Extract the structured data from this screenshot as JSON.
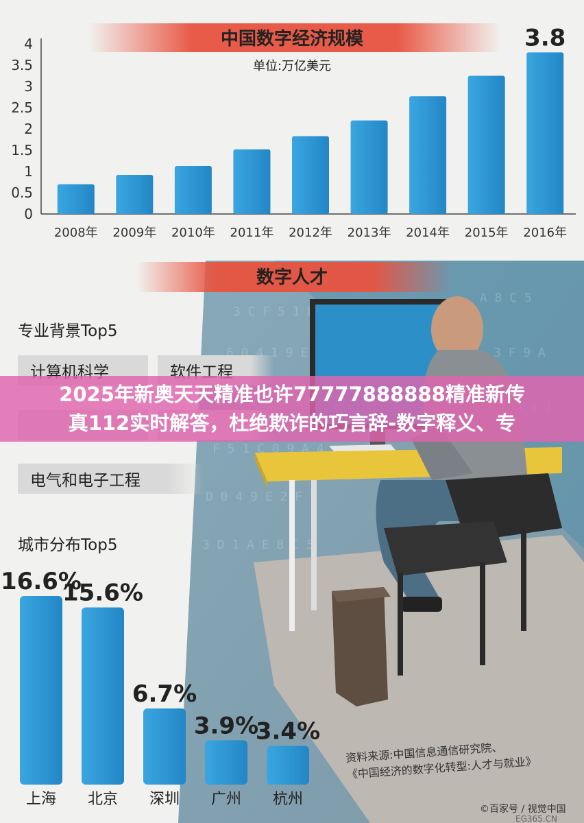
{
  "colors": {
    "bar": "#2f9bd8",
    "bar_dark": "#1e7fbe",
    "title_bg": "#e8533f",
    "pill_bg": "#dcdcdc",
    "banner": "#e064af"
  },
  "top_chart_title": "中国数字经济规模",
  "top_chart_unit": "单位:万亿美元",
  "section_title": "数字人才",
  "major_heading": "专业背景Top5",
  "majors": [
    "计算机科学",
    "软件工程",
    "",
    "",
    "电气和电子工程"
  ],
  "city_heading": "城市分布Top5",
  "source_line1": "资料来源:中国信息通信研究院、",
  "source_line2": "《中国经济的数字化转型:人才与就业》",
  "watermark": "©百家号 / 视觉中国",
  "watermark2": "EG365.CN",
  "banner_line1": "2025年新奥天天精准也许77777888888精准新传",
  "banner_line2": "真112实时解答，杜绝欺诈的巧言辞-数字释义、专",
  "chart_data": [
    {
      "type": "bar",
      "title": "中国数字经济规模",
      "subtitle": "单位:万亿美元",
      "categories": [
        "2008年",
        "2009年",
        "2010年",
        "2011年",
        "2012年",
        "2013年",
        "2014年",
        "2015年",
        "2016年"
      ],
      "values": [
        0.7,
        0.92,
        1.13,
        1.52,
        1.83,
        2.2,
        2.77,
        3.25,
        3.8
      ],
      "value_labels": [
        "",
        "",
        "",
        "",
        "",
        "",
        "",
        "",
        "3.8"
      ],
      "ylim": [
        0,
        4
      ],
      "yticks": [
        "0",
        "0.5",
        "1",
        "1.5",
        "2",
        "2.5",
        "3",
        "3.5",
        "4"
      ],
      "grid": false
    },
    {
      "type": "bar",
      "title": "城市分布Top5",
      "categories": [
        "上海",
        "北京",
        "深圳",
        "广州",
        "杭州"
      ],
      "values": [
        16.6,
        15.6,
        6.7,
        3.9,
        3.4
      ],
      "value_labels": [
        "16.6%",
        "15.6%",
        "6.7%",
        "3.9%",
        "3.4%"
      ],
      "ylim": [
        0,
        18
      ],
      "grid": false
    }
  ]
}
